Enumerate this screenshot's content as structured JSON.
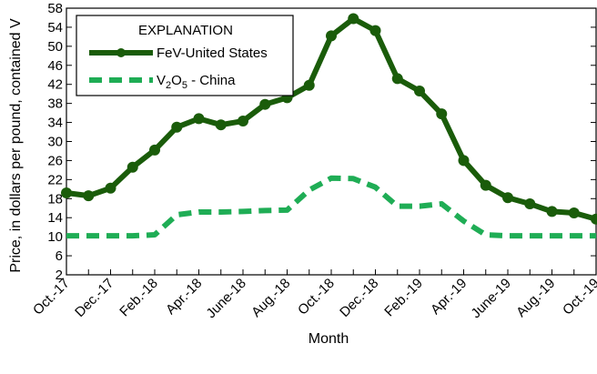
{
  "chart_data": {
    "type": "line",
    "title": "",
    "xlabel": "Month",
    "ylabel": "Price, in dollars per pound, contained V",
    "ylim": [
      2,
      58
    ],
    "yticks": [
      2,
      6,
      10,
      14,
      18,
      22,
      26,
      30,
      34,
      38,
      42,
      46,
      50,
      54,
      58
    ],
    "grid": false,
    "legend": {
      "title": "EXPLANATION",
      "placement": "top-left"
    },
    "categories": [
      "Oct.-17",
      "Nov.-17",
      "Dec.-17",
      "Jan.-18",
      "Feb.-18",
      "Mar.-18",
      "Apr.-18",
      "May-18",
      "June-18",
      "July-18",
      "Aug.-18",
      "Sep.-18",
      "Oct.-18",
      "Nov.-18",
      "Dec.-18",
      "Jan.-19",
      "Feb.-19",
      "Mar.-19",
      "Apr.-19",
      "May-19",
      "June-19",
      "July-19",
      "Aug.-19",
      "Sep.-19",
      "Oct.-19"
    ],
    "tick_labels": [
      "Oct.-17",
      "Dec.-17",
      "Feb.-18",
      "Apr.-18",
      "June-18",
      "Aug.-18",
      "Oct.-18",
      "Dec.-18",
      "Feb.-19",
      "Apr.-19",
      "June-19",
      "Aug.-19",
      "Oct.-19"
    ],
    "series": [
      {
        "name": "FeV-United States",
        "color": "#1a5c0a",
        "style": "solid-markers",
        "values": [
          19.2,
          18.6,
          20.2,
          24.6,
          28.2,
          33.0,
          34.8,
          33.5,
          34.3,
          37.8,
          39.2,
          41.8,
          52.2,
          55.8,
          53.3,
          43.2,
          40.6,
          35.8,
          26.0,
          20.8,
          18.2,
          16.9,
          15.3,
          15.0,
          13.7
        ]
      },
      {
        "name": "V2O5 - China",
        "legend_base": "V",
        "legend_sub1": "2",
        "legend_mid": "O",
        "legend_sub2": "5",
        "legend_rest": " - China",
        "color": "#1fad55",
        "style": "dashed",
        "values": [
          10.2,
          10.2,
          10.2,
          10.2,
          10.4,
          14.6,
          15.2,
          15.2,
          15.3,
          15.5,
          15.6,
          19.8,
          22.3,
          22.2,
          20.4,
          16.4,
          16.4,
          16.9,
          13.3,
          10.4,
          10.2,
          10.2,
          10.2,
          10.2,
          10.2
        ]
      }
    ]
  }
}
